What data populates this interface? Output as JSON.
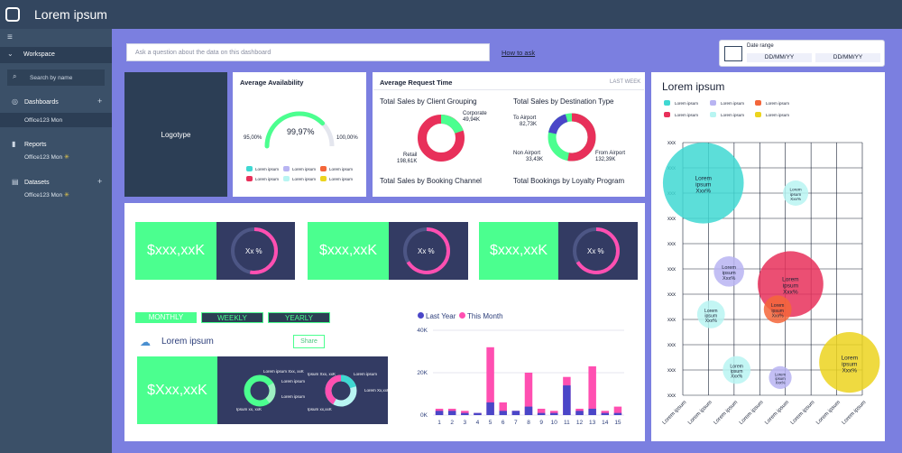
{
  "app": {
    "title": "Lorem ipsum"
  },
  "sidebar": {
    "workspace": "Workspace",
    "search_placeholder": "Search by name",
    "sections": [
      {
        "label": "Dashboards",
        "sub": "Office123 Mon"
      },
      {
        "label": "Reports",
        "sub": "Office123 Mon"
      },
      {
        "label": "Datasets",
        "sub": "Office123 Mon"
      }
    ]
  },
  "ask": {
    "placeholder": "Ask a question about the data on this dashboard",
    "howto": "How to ask"
  },
  "date_range": {
    "label": "Date range",
    "from": "DD/MM/YY",
    "to": "DD/MM/YY"
  },
  "logo": "Logotype",
  "availability": {
    "title": "Average Availability",
    "value": "99,97%",
    "min_label": "95,00%",
    "max_label": "100,00%",
    "fraction": 0.75,
    "legend": [
      "Lorem ipsum",
      "Lorem ipsum",
      "Lorem ipsum",
      "Lorem ipsum",
      "Lorem ipsum",
      "Lorem ipsum"
    ]
  },
  "request_time": {
    "title": "Average Request Time",
    "period": "LAST WEEK",
    "client_grouping": {
      "title": "Total Sales by Client Grouping",
      "corporate_label": "Corporate",
      "corporate_value": "49,94K",
      "retail_label": "Retail",
      "retail_value": "198,61K"
    },
    "destination": {
      "title": "Total Sales by Destination Type",
      "to_airport_label": "To Airport",
      "to_airport_value": "82,73K",
      "non_airport_label": "Non Airport",
      "non_airport_value": "33,43K",
      "from_airport_label": "From Airport",
      "from_airport_value": "132,39K"
    },
    "booking_channel": "Total Sales by Booking Channel",
    "loyalty": "Total Bookings by Loyalty Program"
  },
  "metrics": [
    {
      "amount": "$xxx,xxK",
      "pct": "Xx %"
    },
    {
      "amount": "$xxx,xxK",
      "pct": "Xx %"
    },
    {
      "amount": "$xxx,xxK",
      "pct": "Xx %"
    }
  ],
  "periods": {
    "monthly": "MONTHLY",
    "weekly": "WEEKLY",
    "yearly": "YEARLY"
  },
  "lower_card": {
    "title": "Lorem ipsum",
    "share": "Share",
    "amount": "$Xxx,xxK",
    "donut_labels": [
      "Lorem ipsum Xxx, xxK",
      "Lorem ipsum",
      "Lorem ipsum",
      "Ipsum xx, xxK",
      "Ipsum Xxx, xxK",
      "Lorem ipsum",
      "Lorem Xx,xxK",
      "Ipsum xx,xxK"
    ]
  },
  "colors": {
    "green": "#4bff8f",
    "pink": "#ff4fb1",
    "navy": "#333b63",
    "blue": "#4a46c8",
    "red": "#e8305a",
    "teal": "#3fd8d2"
  },
  "chart_data": [
    {
      "type": "bar",
      "legend": [
        "Last Year",
        "This Month"
      ],
      "categories": [
        "1",
        "2",
        "3",
        "4",
        "5",
        "6",
        "7",
        "8",
        "9",
        "10",
        "11",
        "12",
        "13",
        "14",
        "15"
      ],
      "series": [
        {
          "name": "Last Year",
          "values": [
            2000,
            2000,
            1000,
            1000,
            6000,
            2000,
            2000,
            4000,
            1000,
            1000,
            14000,
            2000,
            3000,
            1000,
            1000
          ]
        },
        {
          "name": "This Month",
          "values": [
            3000,
            3000,
            2000,
            1000,
            32000,
            6000,
            2000,
            20000,
            3000,
            2000,
            18000,
            3000,
            23000,
            2000,
            4000
          ]
        }
      ],
      "y_ticks": [
        "0K",
        "20K",
        "40K"
      ],
      "ylim": [
        0,
        40000
      ]
    },
    {
      "type": "scatter",
      "title": "Lorem ipsum",
      "legend": [
        "Lorem ipsum",
        "Lorem ipsum",
        "Lorem ipsum",
        "Lorem ipsum",
        "Lorem ipsum",
        "Lorem ipsum"
      ],
      "y_ticks": [
        "xxx",
        "xxx",
        "xxx",
        "xxx",
        "xxx",
        "xxx",
        "xxx",
        "xxx",
        "xxx",
        "xxx",
        "xxx"
      ],
      "x_ticks": [
        "Lorem ipsum",
        "Lorem ipsum",
        "Lorem ipsum",
        "Lorem ipsum",
        "Lorem ipsum",
        "Lorem ipsum",
        "Lorem ipsum",
        "Lorem ipsum"
      ],
      "bubbles": [
        {
          "x": 0.8,
          "y": 8.4,
          "r": 1.6,
          "color": "#3fd8d2",
          "label": "Lorem ipsum Xxx%"
        },
        {
          "x": 4.4,
          "y": 8.0,
          "r": 0.5,
          "color": "#b8f5f2",
          "label": "Lorem ipsum Xxx%"
        },
        {
          "x": 1.8,
          "y": 4.9,
          "r": 0.6,
          "color": "#b8b4f2",
          "label": "Lorem ipsum Xxx%"
        },
        {
          "x": 4.2,
          "y": 4.4,
          "r": 1.3,
          "color": "#e8305a",
          "label": "Lorem ipsum Xxx%"
        },
        {
          "x": 3.7,
          "y": 3.4,
          "r": 0.55,
          "color": "#f4663a",
          "label": "Lorem ipsum Xxx%"
        },
        {
          "x": 1.1,
          "y": 3.2,
          "r": 0.55,
          "color": "#b8f5f2",
          "label": "Lorem ipsum Xxx%"
        },
        {
          "x": 2.1,
          "y": 1.0,
          "r": 0.55,
          "color": "#b8f5f2",
          "label": "Lorem ipsum Xxx%"
        },
        {
          "x": 3.8,
          "y": 0.7,
          "r": 0.45,
          "color": "#b8b4f2",
          "label": "Lorem ipsum Xxx%"
        },
        {
          "x": 6.5,
          "y": 1.3,
          "r": 1.2,
          "color": "#ecd41e",
          "label": "Lorem ipsum Xxx%"
        }
      ]
    }
  ]
}
